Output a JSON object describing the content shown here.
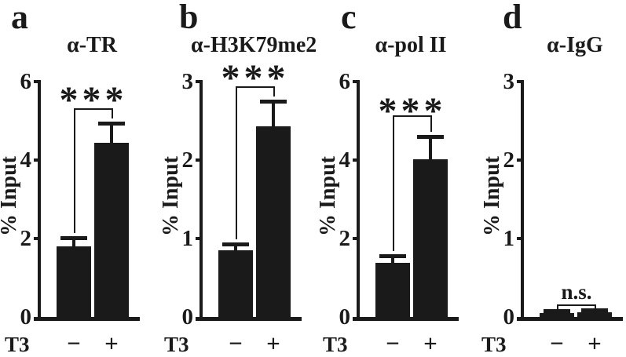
{
  "figure": {
    "background": "#ffffff",
    "bar_color": "#1a1a1a",
    "axis_color": "#1a1a1a",
    "text_color": "#1a1a1a"
  },
  "x_axis_label": "T3",
  "conditions": [
    "−",
    "+"
  ],
  "ylabel": "% Input",
  "chart_data": [
    {
      "type": "bar",
      "panel": "a",
      "title": "α-TR",
      "xlabel": "T3",
      "ylabel": "% Input",
      "categories": [
        "T3 −",
        "T3 +"
      ],
      "values": [
        1.8,
        4.45
      ],
      "errors": [
        0.22,
        0.5
      ],
      "ylim": [
        0,
        6
      ],
      "yticks": [
        0,
        2,
        4,
        6
      ],
      "significance": "***"
    },
    {
      "type": "bar",
      "panel": "b",
      "title": "α-H3K79me2",
      "xlabel": "T3",
      "ylabel": "% Input",
      "categories": [
        "T3 −",
        "T3 +"
      ],
      "values": [
        0.85,
        2.43
      ],
      "errors": [
        0.08,
        0.32
      ],
      "ylim": [
        0,
        3
      ],
      "yticks": [
        0,
        1,
        2,
        3
      ],
      "significance": "***"
    },
    {
      "type": "bar",
      "panel": "c",
      "title": "α-pol II",
      "xlabel": "T3",
      "ylabel": "% Input",
      "categories": [
        "T3 −",
        "T3 +"
      ],
      "values": [
        1.38,
        4.02
      ],
      "errors": [
        0.18,
        0.58
      ],
      "ylim": [
        0,
        6
      ],
      "yticks": [
        0,
        2,
        4,
        6
      ],
      "significance": "***"
    },
    {
      "type": "bar",
      "panel": "d",
      "title": "α-IgG",
      "xlabel": "T3",
      "ylabel": "% Input",
      "categories": [
        "T3 −",
        "T3 +"
      ],
      "values": [
        0.05,
        0.06
      ],
      "errors": [
        0.03,
        0.03
      ],
      "ylim": [
        0,
        3
      ],
      "yticks": [
        0,
        1,
        2,
        3
      ],
      "significance": "n.s."
    }
  ]
}
